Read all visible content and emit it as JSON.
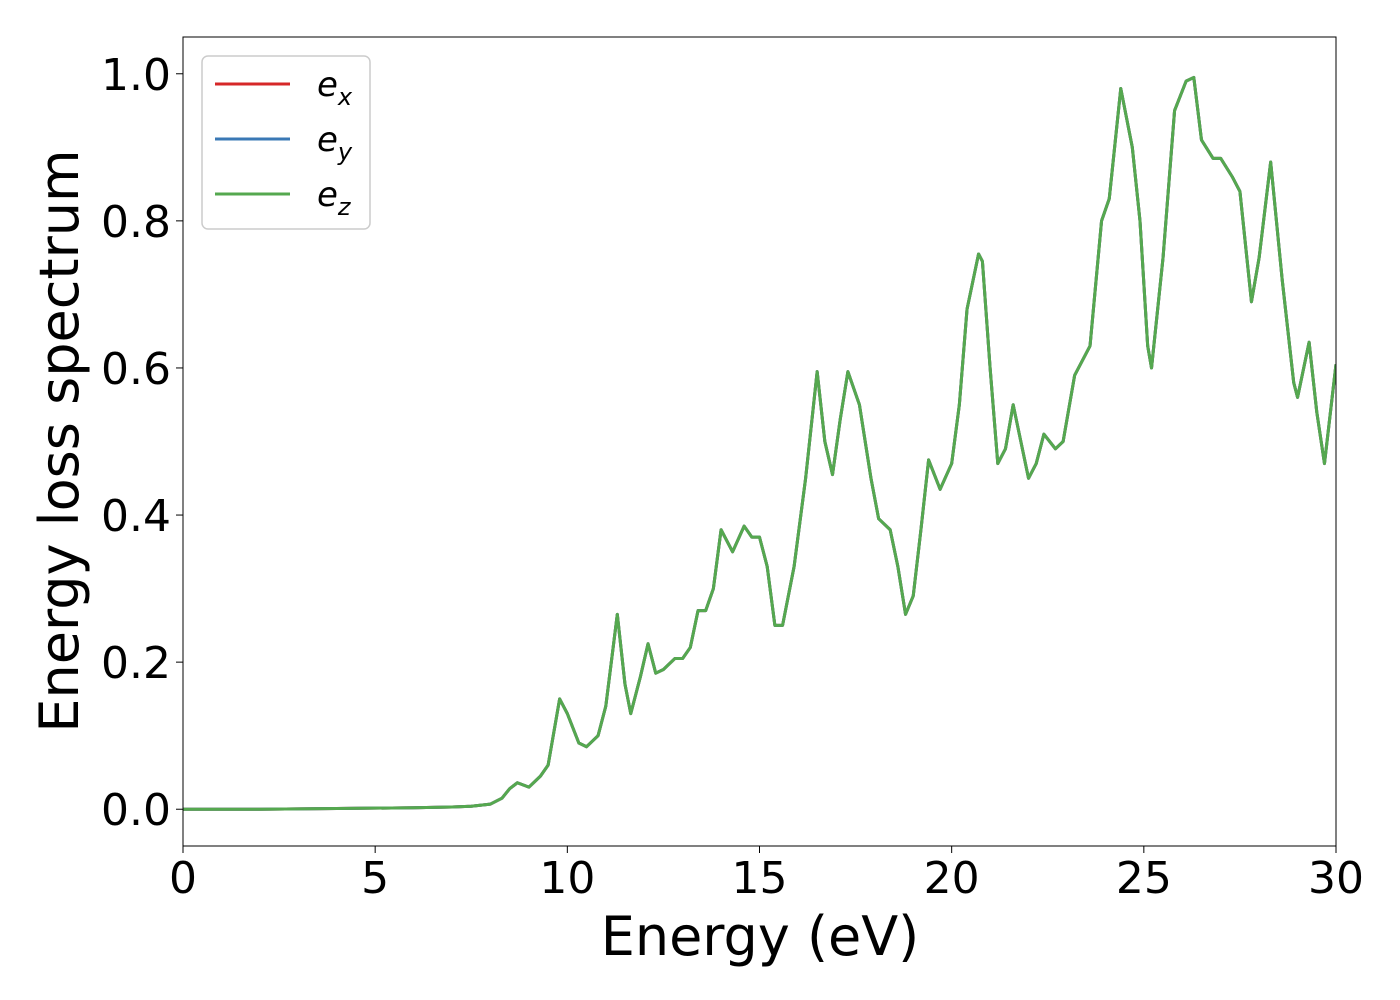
{
  "chart_data": {
    "type": "line",
    "xlabel": "Energy (eV)",
    "ylabel": "Energy loss spectrum",
    "x": [
      0,
      2,
      4,
      6,
      7,
      7.5,
      8,
      8.3,
      8.5,
      8.7,
      9.0,
      9.3,
      9.5,
      9.8,
      10.0,
      10.3,
      10.5,
      10.8,
      11.0,
      11.3,
      11.5,
      11.65,
      11.9,
      12.1,
      12.3,
      12.5,
      12.8,
      13.0,
      13.2,
      13.4,
      13.6,
      13.8,
      14.0,
      14.3,
      14.6,
      14.8,
      15.0,
      15.2,
      15.4,
      15.6,
      15.9,
      16.2,
      16.5,
      16.7,
      16.9,
      17.1,
      17.3,
      17.6,
      17.9,
      18.1,
      18.4,
      18.6,
      18.8,
      19.0,
      19.2,
      19.4,
      19.7,
      20.0,
      20.2,
      20.4,
      20.7,
      20.8,
      21.0,
      21.2,
      21.4,
      21.6,
      21.8,
      22.0,
      22.2,
      22.4,
      22.7,
      22.9,
      23.2,
      23.6,
      23.9,
      24.1,
      24.4,
      24.7,
      24.9,
      25.1,
      25.2,
      25.5,
      25.8,
      26.1,
      26.3,
      26.5,
      26.8,
      27.0,
      27.3,
      27.5,
      27.8,
      28.0,
      28.3,
      28.6,
      28.9,
      29.0,
      29.3,
      29.5,
      29.7,
      30.0
    ],
    "series": [
      {
        "name": "e_x",
        "color": "#d62728",
        "values": [
          0,
          0,
          0.001,
          0.002,
          0.003,
          0.004,
          0.007,
          0.015,
          0.028,
          0.036,
          0.03,
          0.045,
          0.06,
          0.15,
          0.13,
          0.09,
          0.085,
          0.1,
          0.14,
          0.265,
          0.17,
          0.13,
          0.18,
          0.225,
          0.185,
          0.19,
          0.205,
          0.205,
          0.22,
          0.27,
          0.27,
          0.3,
          0.38,
          0.35,
          0.385,
          0.37,
          0.37,
          0.33,
          0.25,
          0.25,
          0.33,
          0.45,
          0.595,
          0.5,
          0.455,
          0.53,
          0.595,
          0.55,
          0.45,
          0.395,
          0.38,
          0.33,
          0.265,
          0.29,
          0.38,
          0.475,
          0.435,
          0.47,
          0.55,
          0.68,
          0.755,
          0.745,
          0.6,
          0.47,
          0.49,
          0.55,
          0.5,
          0.45,
          0.47,
          0.51,
          0.49,
          0.5,
          0.59,
          0.63,
          0.8,
          0.83,
          0.98,
          0.9,
          0.8,
          0.63,
          0.6,
          0.75,
          0.95,
          0.99,
          0.995,
          0.91,
          0.885,
          0.885,
          0.86,
          0.84,
          0.69,
          0.75,
          0.88,
          0.72,
          0.58,
          0.56,
          0.635,
          0.54,
          0.47,
          0.605
        ]
      },
      {
        "name": "e_y",
        "color": "#3a78b5",
        "values": [
          0,
          0,
          0.001,
          0.002,
          0.003,
          0.004,
          0.007,
          0.015,
          0.028,
          0.036,
          0.03,
          0.045,
          0.06,
          0.15,
          0.13,
          0.09,
          0.085,
          0.1,
          0.14,
          0.265,
          0.17,
          0.13,
          0.18,
          0.225,
          0.185,
          0.19,
          0.205,
          0.205,
          0.22,
          0.27,
          0.27,
          0.3,
          0.38,
          0.35,
          0.385,
          0.37,
          0.37,
          0.33,
          0.25,
          0.25,
          0.33,
          0.45,
          0.595,
          0.5,
          0.455,
          0.53,
          0.595,
          0.55,
          0.45,
          0.395,
          0.38,
          0.33,
          0.265,
          0.29,
          0.38,
          0.475,
          0.435,
          0.47,
          0.55,
          0.68,
          0.755,
          0.745,
          0.6,
          0.47,
          0.49,
          0.55,
          0.5,
          0.45,
          0.47,
          0.51,
          0.49,
          0.5,
          0.59,
          0.63,
          0.8,
          0.83,
          0.98,
          0.9,
          0.8,
          0.63,
          0.6,
          0.75,
          0.95,
          0.99,
          0.995,
          0.91,
          0.885,
          0.885,
          0.86,
          0.84,
          0.69,
          0.75,
          0.88,
          0.72,
          0.58,
          0.56,
          0.635,
          0.54,
          0.47,
          0.605
        ]
      },
      {
        "name": "e_z",
        "color": "#55a84f",
        "values": [
          0,
          0,
          0.001,
          0.002,
          0.003,
          0.004,
          0.007,
          0.015,
          0.028,
          0.036,
          0.03,
          0.045,
          0.06,
          0.15,
          0.13,
          0.09,
          0.085,
          0.1,
          0.14,
          0.265,
          0.17,
          0.13,
          0.18,
          0.225,
          0.185,
          0.19,
          0.205,
          0.205,
          0.22,
          0.27,
          0.27,
          0.3,
          0.38,
          0.35,
          0.385,
          0.37,
          0.37,
          0.33,
          0.25,
          0.25,
          0.33,
          0.45,
          0.595,
          0.5,
          0.455,
          0.53,
          0.595,
          0.55,
          0.45,
          0.395,
          0.38,
          0.33,
          0.265,
          0.29,
          0.38,
          0.475,
          0.435,
          0.47,
          0.55,
          0.68,
          0.755,
          0.745,
          0.6,
          0.47,
          0.49,
          0.55,
          0.5,
          0.45,
          0.47,
          0.51,
          0.49,
          0.5,
          0.59,
          0.63,
          0.8,
          0.83,
          0.98,
          0.9,
          0.8,
          0.63,
          0.6,
          0.75,
          0.95,
          0.99,
          0.995,
          0.91,
          0.885,
          0.885,
          0.86,
          0.84,
          0.69,
          0.75,
          0.88,
          0.72,
          0.58,
          0.56,
          0.635,
          0.54,
          0.47,
          0.605
        ]
      }
    ],
    "xlim": [
      0,
      30
    ],
    "xticks": [
      0,
      5,
      10,
      15,
      20,
      25,
      30
    ],
    "ylim": [
      -0.05,
      1.05
    ],
    "yticks": [
      {
        "value": 0,
        "label": "0.0"
      },
      0.2,
      0.4,
      0.6,
      0.8,
      {
        "value": 1,
        "label": "1.0"
      }
    ],
    "legend": "upper left",
    "grid": false
  }
}
